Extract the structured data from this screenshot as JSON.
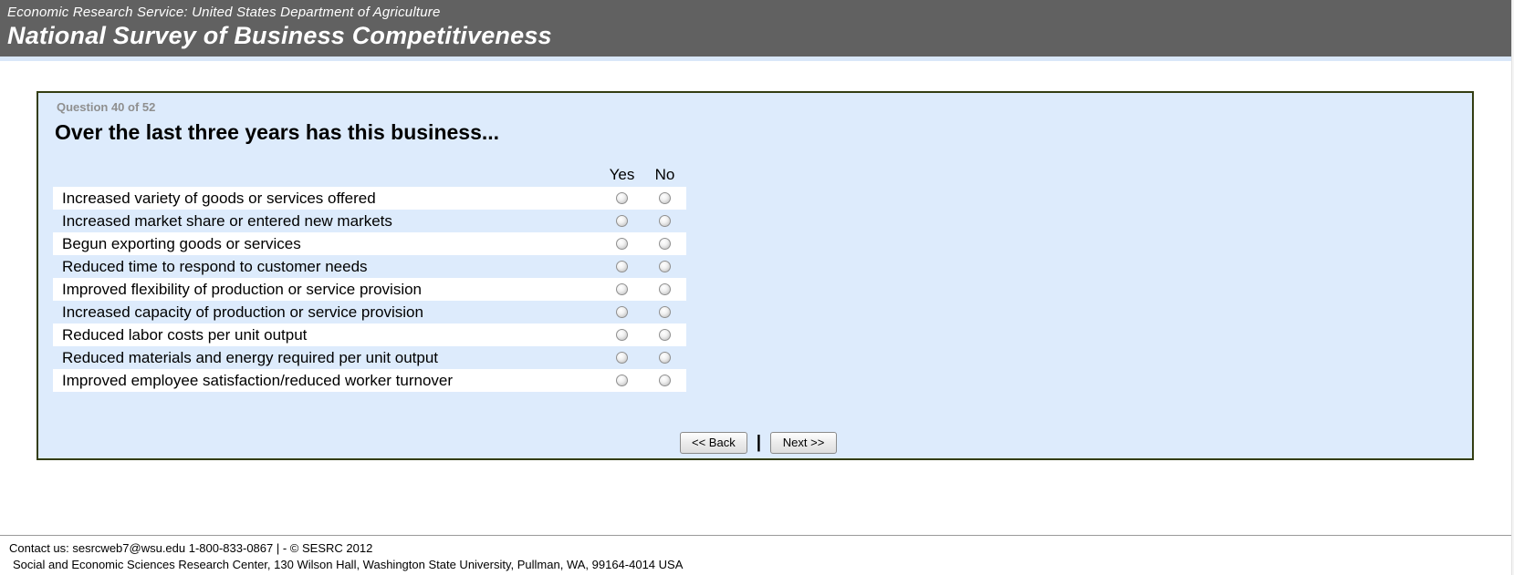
{
  "header": {
    "agency": "Economic Research Service: United States Department of Agriculture",
    "title": "National Survey of Business Competitiveness"
  },
  "question": {
    "progress": "Question 40 of 52",
    "title": "Over the last three years has this business...",
    "columns": [
      "Yes",
      "No"
    ],
    "rows": [
      "Increased variety of goods or services offered",
      "Increased market share or entered new markets",
      "Begun exporting goods or services",
      "Reduced time to respond to customer needs",
      "Improved flexibility of production or service provision",
      "Increased capacity of production or service provision",
      "Reduced labor costs per unit output",
      "Reduced materials and energy required per unit output",
      "Improved employee satisfaction/reduced worker turnover"
    ],
    "selected": []
  },
  "nav": {
    "back_label": "<< Back",
    "separator": "|",
    "next_label": "Next >>"
  },
  "footer": {
    "line1": "Contact us: sesrcweb7@wsu.edu 1-800-833-0867 | - © SESRC 2012",
    "line2": "Social and Economic Sciences Research Center, 130 Wilson Hall, Washington State University, Pullman, WA, 99164-4014 USA"
  },
  "colors": {
    "header_bg": "#616161",
    "accent_strip": "#d9e7f9",
    "panel_bg": "#ddebfc",
    "panel_border": "#333d12",
    "row_stripe": "#ffffff"
  }
}
